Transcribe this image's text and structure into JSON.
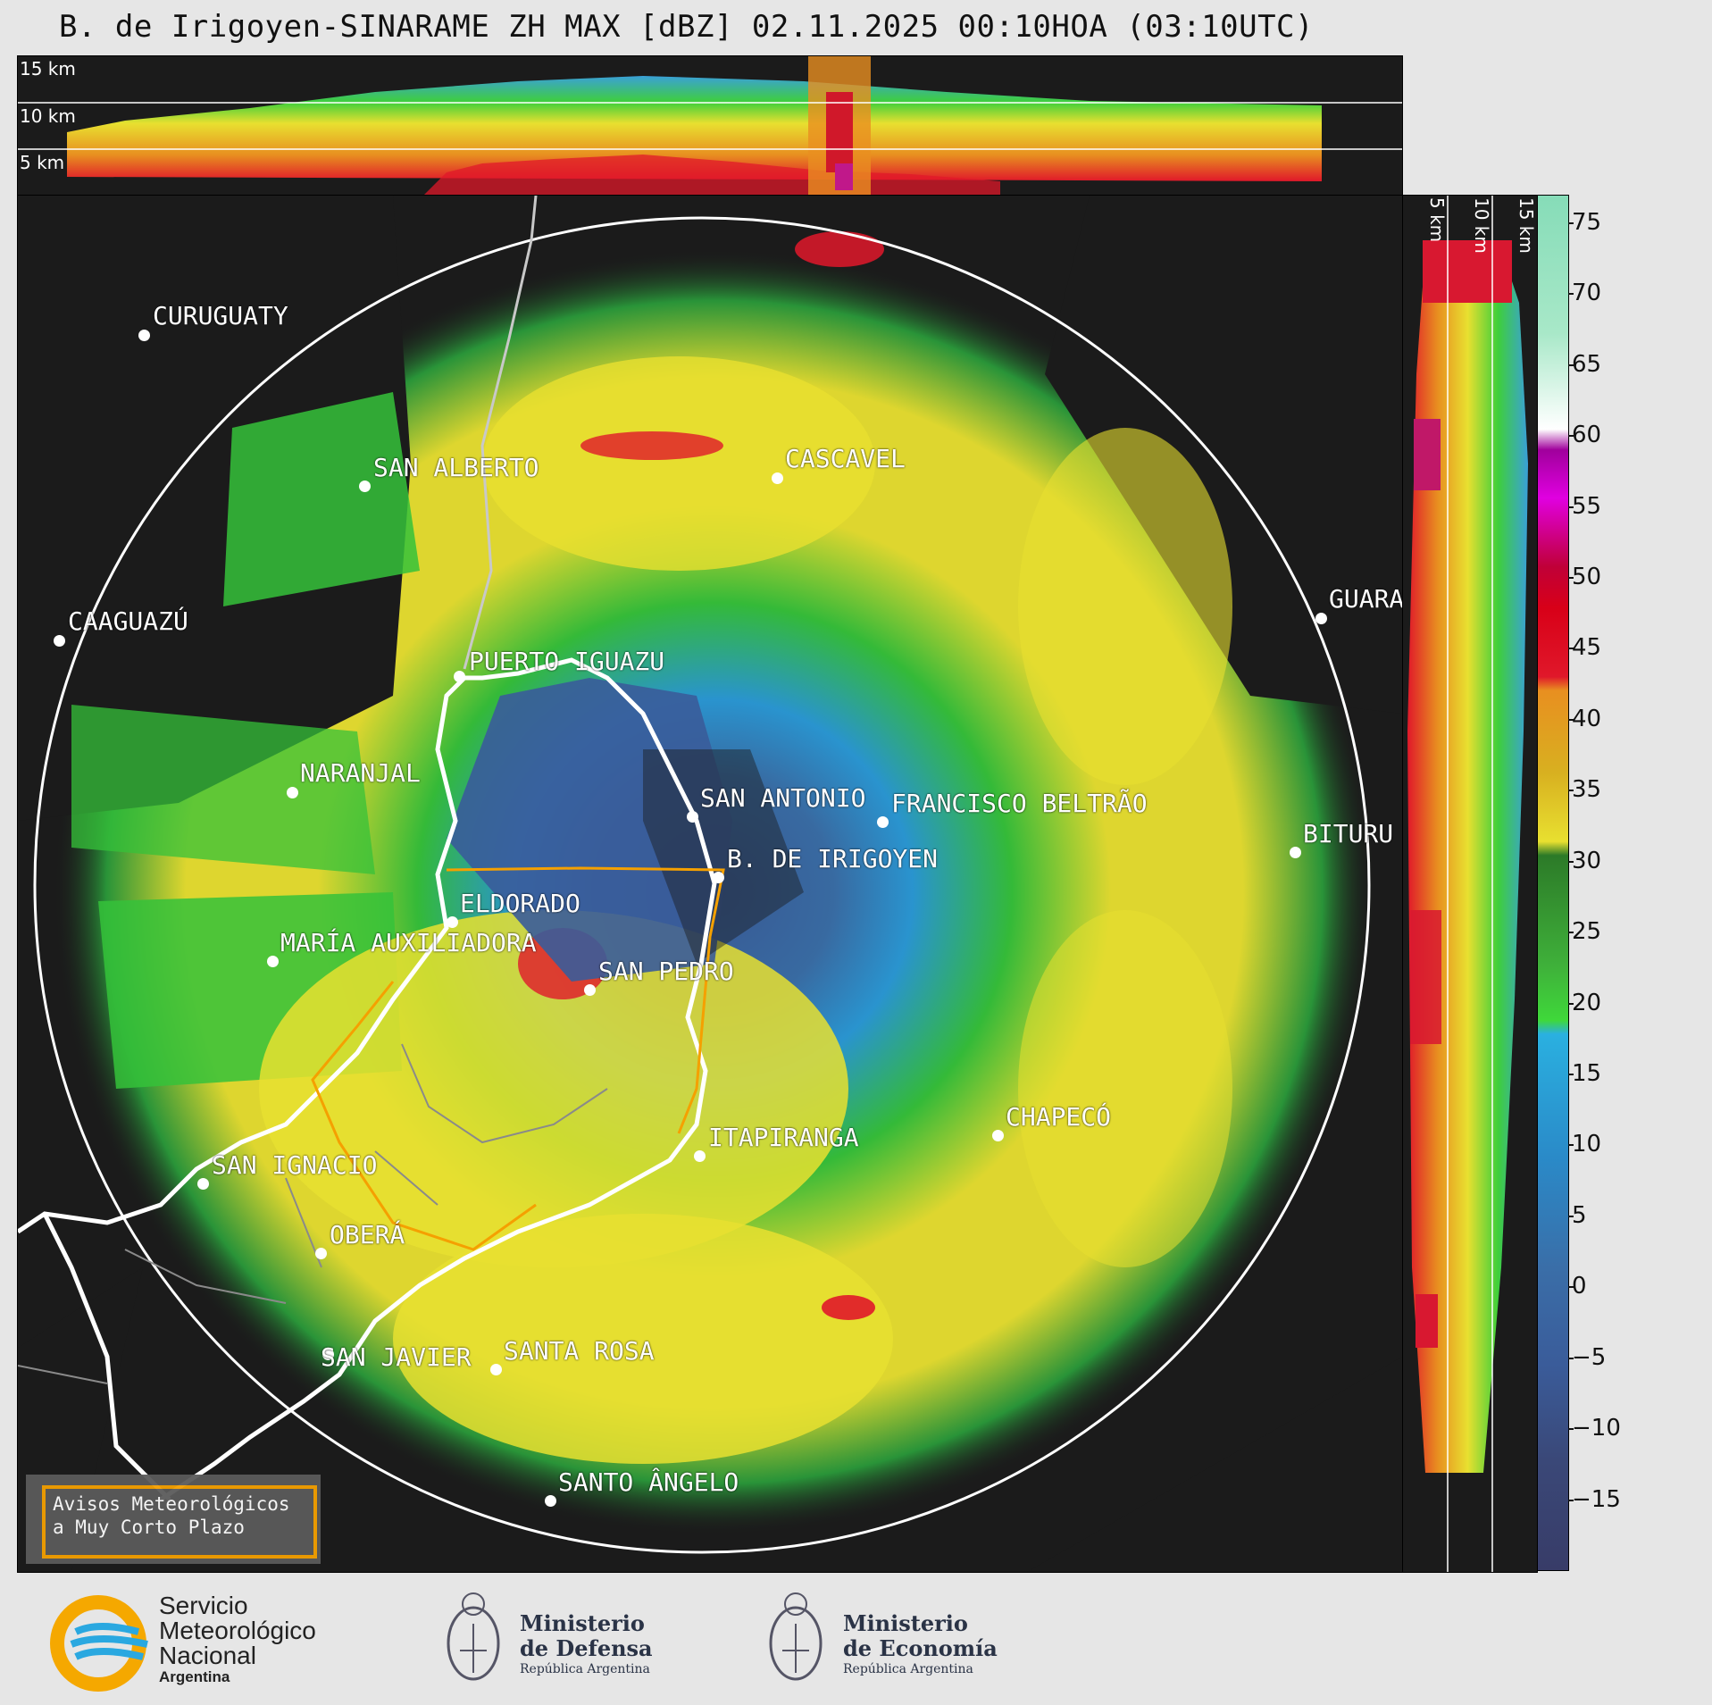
{
  "title": "B. de Irigoyen-SINARAME ZH MAX [dBZ] 02.11.2025 00:10HOA (03:10UTC)",
  "height_labels": [
    "15 km",
    "10 km",
    "5 km"
  ],
  "colorbar": {
    "ticks": [
      "75",
      "70",
      "65",
      "60",
      "55",
      "50",
      "45",
      "40",
      "35",
      "30",
      "25",
      "20",
      "15",
      "10",
      "5",
      "0",
      "−5",
      "−10",
      "−15"
    ],
    "range": [
      -20,
      77
    ],
    "unit": "dBZ"
  },
  "cities": [
    {
      "name": "CURUGUATY"
    },
    {
      "name": "SAN ALBERTO"
    },
    {
      "name": "CASCAVEL"
    },
    {
      "name": "GUARA"
    },
    {
      "name": "CAAGUAZÚ"
    },
    {
      "name": "PUERTO IGUAZU"
    },
    {
      "name": "NARANJAL"
    },
    {
      "name": "SAN ANTONIO"
    },
    {
      "name": "FRANCISCO BELTRÃO"
    },
    {
      "name": "BITURU"
    },
    {
      "name": "B. DE IRIGOYEN"
    },
    {
      "name": "ELDORADO"
    },
    {
      "name": "MARÍA AUXILIADORA"
    },
    {
      "name": "SAN PEDRO"
    },
    {
      "name": "CHAPECÓ"
    },
    {
      "name": "SAN IGNACIO"
    },
    {
      "name": "ITAPIRANGA"
    },
    {
      "name": "OBERÁ"
    },
    {
      "name": "SAN JAVIER"
    },
    {
      "name": "SANTA ROSA"
    },
    {
      "name": "SANTO ÂNGELO"
    }
  ],
  "legend": {
    "line1": "Avisos Meteorológicos",
    "line2": "a Muy Corto Plazo"
  },
  "footer": {
    "smn": {
      "line1": "Servicio",
      "line2": "Meteorológico",
      "line3": "Nacional",
      "line4": "Argentina"
    },
    "defensa": {
      "line1": "Ministerio",
      "line2": "de Defensa",
      "line3": "República Argentina"
    },
    "economia": {
      "line1": "Ministerio",
      "line2": "de Economía",
      "line3": "República Argentina"
    }
  }
}
